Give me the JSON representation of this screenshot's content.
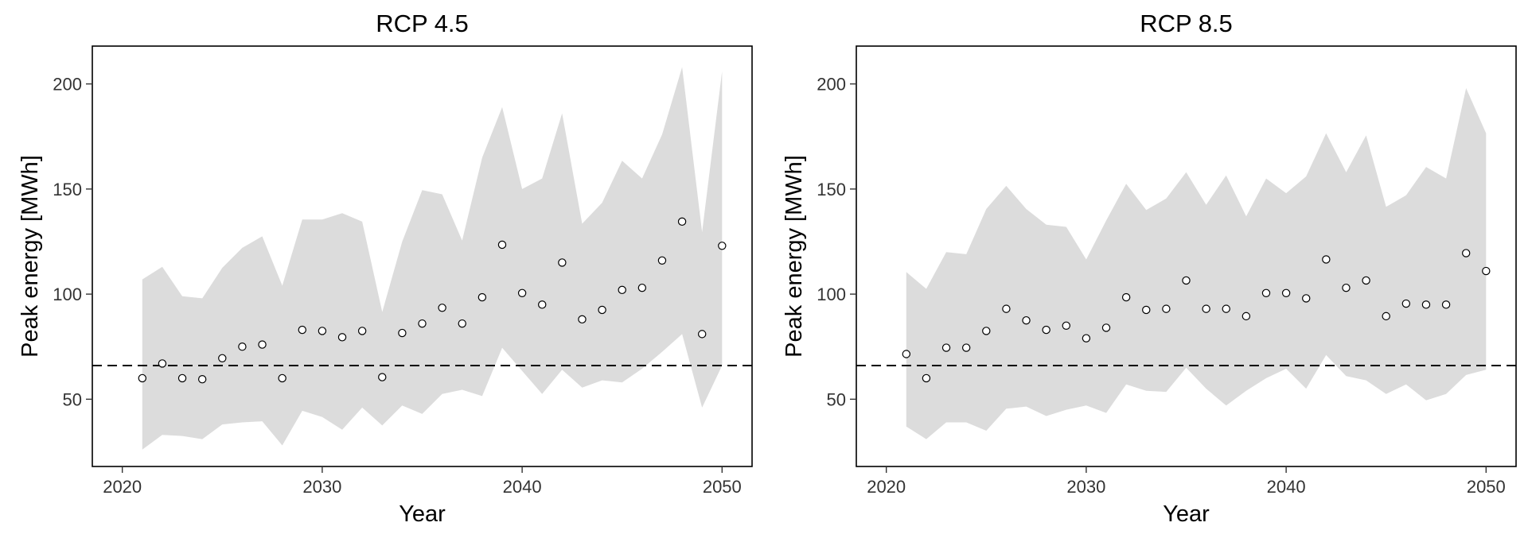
{
  "colors": {
    "band": "#dcdcdc",
    "point_stroke": "#000000",
    "reference_line": "#000000"
  },
  "chart_data": [
    {
      "type": "scatter",
      "title": "RCP 4.5",
      "xlabel": "Year",
      "ylabel": "Peak energy [MWh]",
      "xlim": [
        2018.5,
        2051.5
      ],
      "ylim": [
        18,
        218
      ],
      "xticks": [
        2020,
        2030,
        2040,
        2050
      ],
      "yticks": [
        50,
        100,
        150,
        200
      ],
      "reference_line": 66,
      "grid": false,
      "series": [
        {
          "kind": "points",
          "x": [
            2021,
            2022,
            2023,
            2024,
            2025,
            2026,
            2027,
            2028,
            2029,
            2030,
            2031,
            2032,
            2033,
            2034,
            2035,
            2036,
            2037,
            2038,
            2039,
            2040,
            2041,
            2042,
            2043,
            2044,
            2045,
            2046,
            2047,
            2048,
            2049,
            2050
          ],
          "values": [
            60,
            67,
            60,
            59.5,
            69.5,
            75,
            76,
            60,
            83,
            82.5,
            79.5,
            82.5,
            60.5,
            81.5,
            86,
            93.5,
            86,
            98.5,
            123.5,
            100.5,
            95,
            115,
            88,
            92.5,
            102,
            103,
            116,
            134.5,
            81,
            123
          ]
        },
        {
          "kind": "band",
          "x": [
            2021,
            2022,
            2023,
            2024,
            2025,
            2026,
            2027,
            2028,
            2029,
            2030,
            2031,
            2032,
            2033,
            2034,
            2035,
            2036,
            2037,
            2038,
            2039,
            2040,
            2041,
            2042,
            2043,
            2044,
            2045,
            2046,
            2047,
            2048,
            2049,
            2050
          ],
          "lower": [
            26,
            33,
            32.5,
            31,
            38,
            39,
            39.5,
            28,
            44.5,
            41.5,
            35.5,
            46,
            37.5,
            47,
            43,
            52.5,
            54.5,
            51.5,
            74.5,
            63.5,
            52.5,
            64,
            55.5,
            59,
            58,
            64.5,
            72.5,
            81,
            46,
            66
          ],
          "upper": [
            107,
            113,
            99,
            98,
            112.5,
            122,
            127.5,
            104,
            135.5,
            135.5,
            138.5,
            134.5,
            91.5,
            125,
            149.5,
            147.5,
            125.5,
            165,
            189,
            150,
            155,
            186,
            133.5,
            143.5,
            163.5,
            155,
            176,
            208,
            129.5,
            206
          ]
        }
      ]
    },
    {
      "type": "scatter",
      "title": "RCP 8.5",
      "xlabel": "Year",
      "ylabel": "Peak energy [MWh]",
      "xlim": [
        2018.5,
        2051.5
      ],
      "ylim": [
        18,
        218
      ],
      "xticks": [
        2020,
        2030,
        2040,
        2050
      ],
      "yticks": [
        50,
        100,
        150,
        200
      ],
      "reference_line": 66,
      "grid": false,
      "series": [
        {
          "kind": "points",
          "x": [
            2021,
            2022,
            2023,
            2024,
            2025,
            2026,
            2027,
            2028,
            2029,
            2030,
            2031,
            2032,
            2033,
            2034,
            2035,
            2036,
            2037,
            2038,
            2039,
            2040,
            2041,
            2042,
            2043,
            2044,
            2045,
            2046,
            2047,
            2048,
            2049,
            2050
          ],
          "values": [
            71.5,
            60,
            74.5,
            74.5,
            82.5,
            93,
            87.5,
            83,
            85,
            79,
            84,
            98.5,
            92.5,
            93,
            106.5,
            93,
            93,
            89.5,
            100.5,
            100.5,
            98,
            116.5,
            103,
            106.5,
            89.5,
            95.5,
            95,
            95,
            119.5,
            111
          ]
        },
        {
          "kind": "band",
          "x": [
            2021,
            2022,
            2023,
            2024,
            2025,
            2026,
            2027,
            2028,
            2029,
            2030,
            2031,
            2032,
            2033,
            2034,
            2035,
            2036,
            2037,
            2038,
            2039,
            2040,
            2041,
            2042,
            2043,
            2044,
            2045,
            2046,
            2047,
            2048,
            2049,
            2050
          ],
          "lower": [
            37,
            31,
            39,
            39,
            35,
            45.5,
            46.5,
            42,
            45,
            47,
            43.5,
            57,
            54,
            53.5,
            65,
            55,
            47,
            54,
            60,
            64.5,
            55,
            71,
            61,
            59,
            52.5,
            57,
            49.5,
            52.5,
            61.5,
            64
          ],
          "upper": [
            110.5,
            102.5,
            120,
            119,
            140.5,
            151.5,
            140.5,
            133,
            132,
            116.5,
            135,
            152.5,
            140,
            145.5,
            158,
            142.5,
            156.5,
            137,
            155,
            148,
            156,
            176.5,
            158,
            175.5,
            141.5,
            147,
            160.5,
            155,
            198,
            176.5
          ]
        }
      ]
    }
  ]
}
